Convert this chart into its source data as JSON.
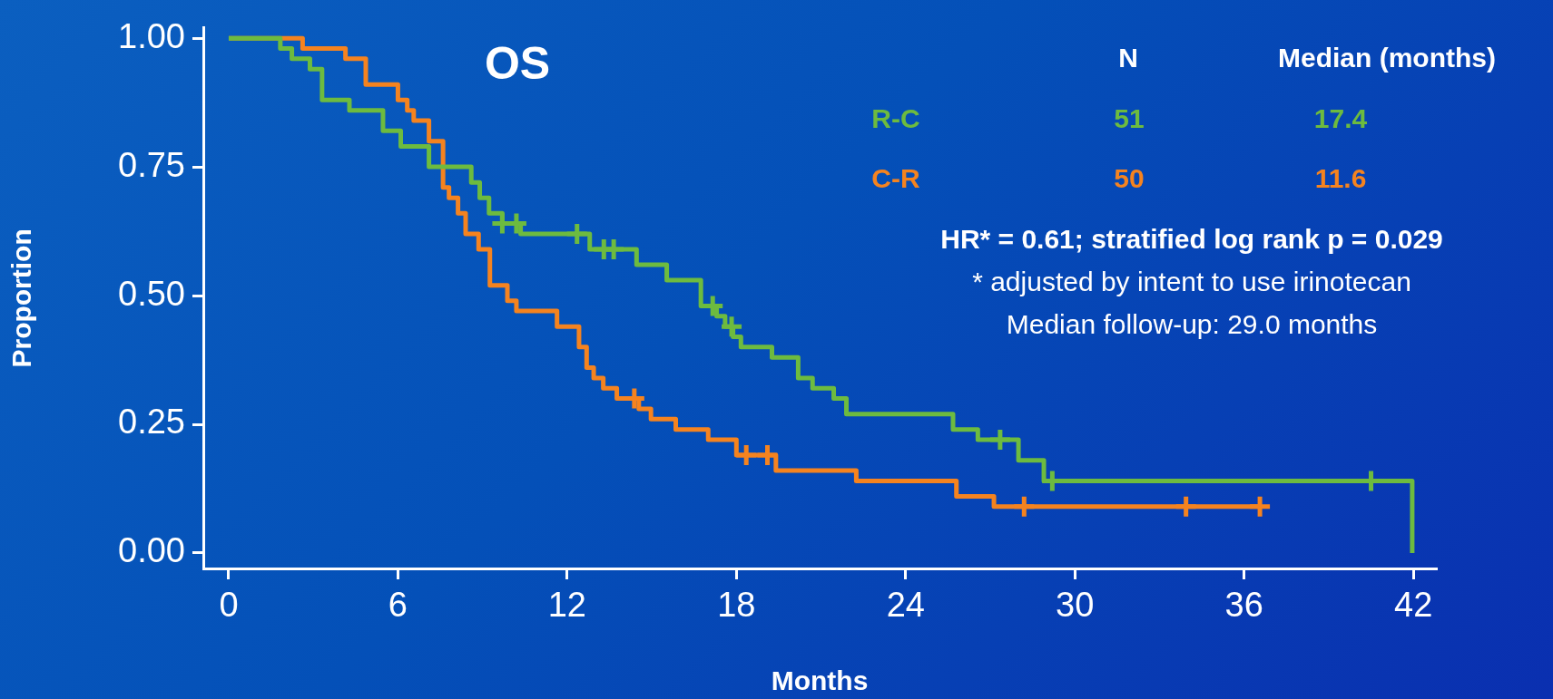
{
  "chart_data": {
    "type": "step",
    "title": "OS",
    "xlabel": "Months",
    "ylabel": "Proportion",
    "xlim": [
      -0.9,
      42.8
    ],
    "xticks": [
      0,
      6,
      12,
      18,
      24,
      30,
      36,
      42
    ],
    "ylim": [
      -0.03,
      1.02
    ],
    "yticks": [
      {
        "value": 0,
        "label": "0.00"
      },
      {
        "value": 0.25,
        "label": "0.25"
      },
      {
        "value": 0.5,
        "label": "0.50"
      },
      {
        "value": 0.75,
        "label": "0.75"
      },
      {
        "value": 1,
        "label": "1.00"
      }
    ],
    "grid": false,
    "legend": "top right",
    "line_style": "solid",
    "marker": "none",
    "series": [
      {
        "name": "R-C",
        "type": "step",
        "color": "#6dbb3f",
        "x": [
          0,
          1.83,
          2.24,
          2.88,
          3.31,
          4.28,
          5.47,
          6.1,
          7.1,
          8.6,
          8.9,
          9.23,
          9.7,
          10.35,
          12.8,
          14.46,
          15.53,
          16.74,
          17.3,
          17.6,
          17.88,
          18.16,
          19.26,
          20.19,
          20.7,
          21.45,
          21.9,
          25.68,
          26.56,
          28.0,
          28.9,
          41.96
        ],
        "values": [
          1,
          0.98,
          0.96,
          0.94,
          0.88,
          0.86,
          0.82,
          0.79,
          0.75,
          0.72,
          0.69,
          0.66,
          0.64,
          0.62,
          0.59,
          0.56,
          0.53,
          0.48,
          0.46,
          0.44,
          0.42,
          0.4,
          0.38,
          0.34,
          0.32,
          0.3,
          0.27,
          0.24,
          0.22,
          0.18,
          0.14,
          0
        ]
      },
      {
        "name": "C-R",
        "type": "step",
        "color": "#f5831f",
        "x": [
          0,
          2.62,
          4.14,
          4.86,
          6.0,
          6.33,
          6.56,
          7.1,
          7.6,
          7.81,
          8.13,
          8.4,
          8.86,
          9.26,
          9.88,
          10.2,
          11.64,
          12.42,
          12.69,
          12.94,
          13.28,
          13.76,
          14.54,
          14.97,
          15.85,
          17.0,
          18.0,
          19.4,
          22.25,
          25.8,
          27.13,
          36.56
        ],
        "values": [
          1,
          0.98,
          0.96,
          0.91,
          0.88,
          0.86,
          0.84,
          0.8,
          0.71,
          0.69,
          0.66,
          0.62,
          0.59,
          0.52,
          0.49,
          0.47,
          0.44,
          0.4,
          0.36,
          0.34,
          0.32,
          0.3,
          0.28,
          0.26,
          0.24,
          0.22,
          0.19,
          0.16,
          0.14,
          0.11,
          0.09,
          0.09
        ]
      },
      {
        "type": "scatter",
        "marker": "cross",
        "color": "#6dbb3f",
        "x": [
          9.7,
          10.2,
          12.35,
          13.3,
          13.65,
          17.16,
          17.83,
          27.35,
          29.2,
          40.5
        ],
        "values": [
          0.64,
          0.64,
          0.62,
          0.59,
          0.59,
          0.48,
          0.44,
          0.22,
          0.14,
          0.14
        ]
      },
      {
        "type": "scatter",
        "marker": "cross",
        "color": "#f5831f",
        "x": [
          14.38,
          18.35,
          19.1,
          28.2,
          33.94,
          36.56
        ],
        "values": [
          0.3,
          0.19,
          0.19,
          0.09,
          0.09,
          0.09
        ]
      }
    ],
    "annotations": [
      "N",
      "Median (months)",
      "51",
      "17.4",
      "50",
      "11.6",
      "HR* = 0.61; stratified log rank p = 0.029",
      "* adjusted by intent to use irinotecan",
      "Median follow-up: 29.0 months"
    ]
  }
}
